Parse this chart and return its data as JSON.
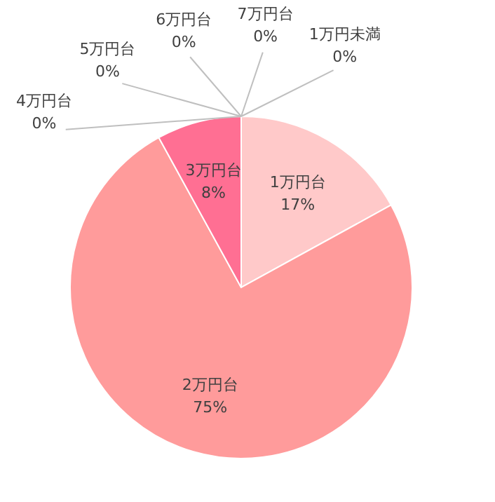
{
  "chart_data": {
    "type": "pie",
    "categories": [
      "1万円台",
      "2万円台",
      "3万円台",
      "4万円台",
      "5万円台",
      "6万円台",
      "7万円台",
      "1万円未満"
    ],
    "values": [
      17,
      75,
      8,
      0,
      0,
      0,
      0,
      0
    ],
    "value_labels": [
      "17%",
      "75%",
      "8%",
      "0%",
      "0%",
      "0%",
      "0%",
      "0%"
    ],
    "colors": [
      "#ffc9c9",
      "#ff9b9b",
      "#ff6f93",
      null,
      null,
      null,
      null,
      null
    ]
  }
}
